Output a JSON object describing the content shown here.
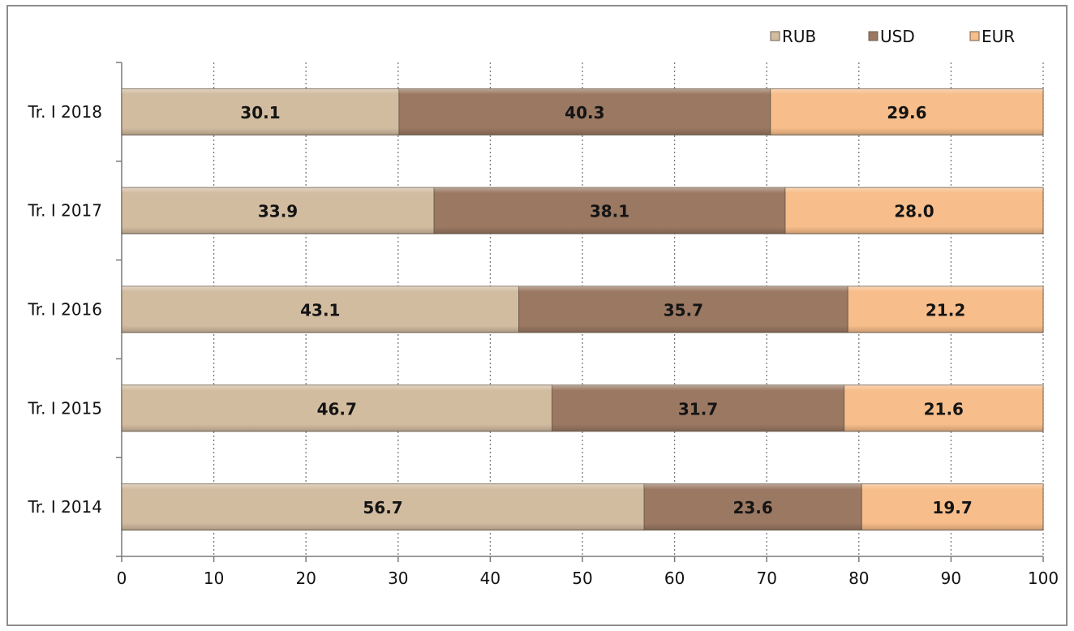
{
  "chart_data": {
    "type": "bar",
    "orientation": "horizontal",
    "stacked": true,
    "categories": [
      "Tr. I 2018",
      "Tr. I 2017",
      "Tr. I 2016",
      "Tr. I 2015",
      "Tr. I 2014"
    ],
    "series": [
      {
        "name": "RUB",
        "color": "#d2bca0",
        "values": [
          30.1,
          33.9,
          43.1,
          46.7,
          56.7
        ]
      },
      {
        "name": "USD",
        "color": "#9a7862",
        "values": [
          40.3,
          38.1,
          35.7,
          31.7,
          23.6
        ]
      },
      {
        "name": "EUR",
        "color": "#f7bd8a",
        "values": [
          29.6,
          28.0,
          21.2,
          21.6,
          19.7
        ]
      }
    ],
    "value_labels": [
      [
        "30.1",
        "33.9",
        "43.1",
        "46.7",
        "56.7"
      ],
      [
        "40.3",
        "38.1",
        "35.7",
        "31.7",
        "23.6"
      ],
      [
        "29.6",
        "28.0",
        "21.2",
        "21.6",
        "19.7"
      ]
    ],
    "xlim": [
      0,
      100
    ],
    "x_ticks": [
      "0",
      "10",
      "20",
      "30",
      "40",
      "50",
      "60",
      "70",
      "80",
      "90",
      "100"
    ],
    "grid": "vertical-dotted",
    "legend": "top-right",
    "title": "",
    "xlabel": "",
    "ylabel": ""
  }
}
